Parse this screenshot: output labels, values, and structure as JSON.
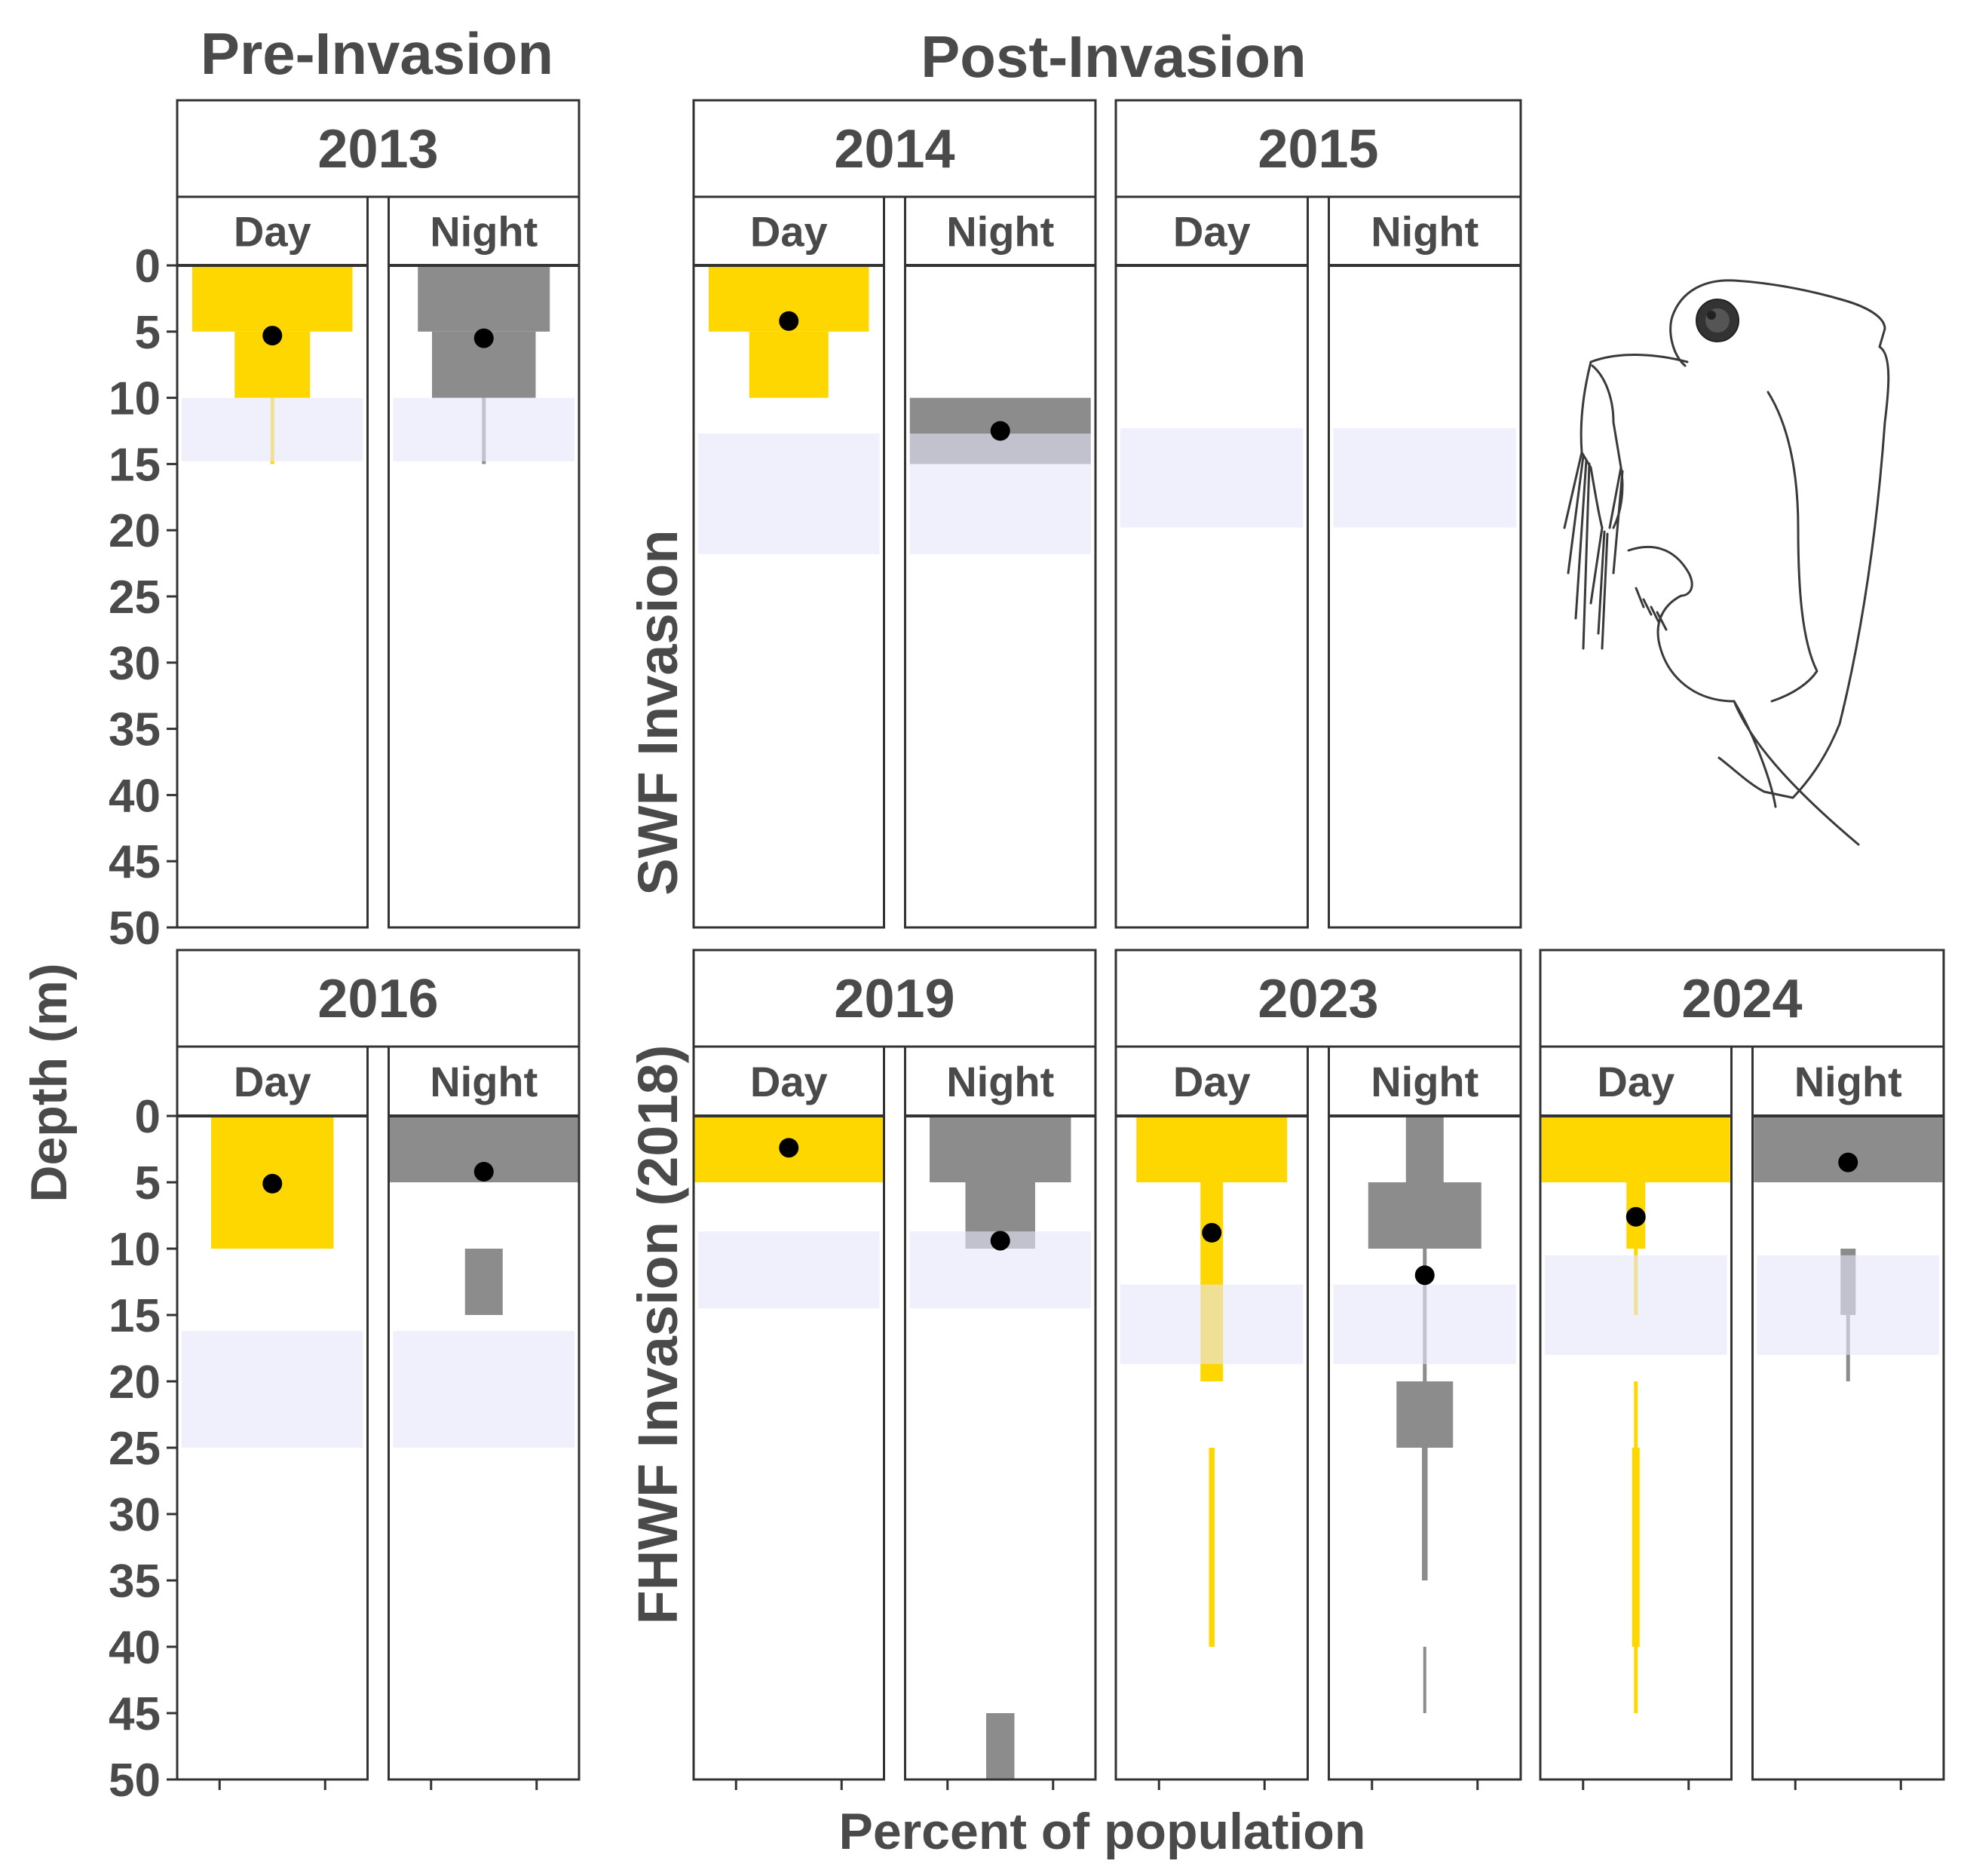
{
  "figure": {
    "pre_title": "Pre-Invasion",
    "post_title": "Post-Invasion",
    "row_label_top": "SWF Invasion",
    "row_label_bottom": "FHWF Invasion (2018)",
    "ylabel": "Depth (m)",
    "xlabel": "Percent of population",
    "illustration": "daphnia-drawing"
  },
  "colors": {
    "day": "#FFD700",
    "night": "#8C8C8C",
    "band": "#E6E6FA",
    "mean": "#000000",
    "frame": "#333333",
    "text": "#4a4a4a"
  },
  "chart_data": {
    "type": "bar",
    "orientation": "horizontal-kite",
    "ylabel": "Depth (m)",
    "xlabel": "Percent of population",
    "ylim": [
      0,
      50
    ],
    "yreversed": true,
    "yticks": [
      "0",
      "5",
      "10",
      "15",
      "20",
      "25",
      "30",
      "35",
      "40",
      "45",
      "50"
    ],
    "subpanels": [
      "Day",
      "Night"
    ],
    "panels": [
      {
        "year": "2013",
        "band": [
          10,
          14.8
        ],
        "day": {
          "layers": [
            {
              "top": 0,
              "bottom": 5,
              "pct": 85
            },
            {
              "top": 5,
              "bottom": 10,
              "pct": 40
            },
            {
              "top": 10,
              "bottom": 15,
              "pct": 2
            }
          ],
          "mean": 5.3
        },
        "night": {
          "layers": [
            {
              "top": 0,
              "bottom": 5,
              "pct": 70
            },
            {
              "top": 5,
              "bottom": 10,
              "pct": 55
            },
            {
              "top": 10,
              "bottom": 15,
              "pct": 2
            }
          ],
          "mean": 5.5
        }
      },
      {
        "year": "2014",
        "band": [
          12.7,
          21.8
        ],
        "day": {
          "layers": [
            {
              "top": 0,
              "bottom": 5,
              "pct": 85
            },
            {
              "top": 5,
              "bottom": 10,
              "pct": 42
            }
          ],
          "mean": 4.2
        },
        "night": {
          "layers": [
            {
              "top": 10,
              "bottom": 15,
              "pct": 96
            }
          ],
          "mean": 12.5
        }
      },
      {
        "year": "2015",
        "band": [
          12.3,
          19.8
        ],
        "day": {
          "layers": [],
          "mean": null
        },
        "night": {
          "layers": [],
          "mean": null
        }
      },
      {
        "year": "2016",
        "band": [
          16.2,
          25
        ],
        "day": {
          "layers": [
            {
              "top": 0,
              "bottom": 10,
              "pct": 65
            }
          ],
          "mean": 5.1
        },
        "night": {
          "layers": [
            {
              "top": 0,
              "bottom": 5,
              "pct": 100
            },
            {
              "top": 10,
              "bottom": 15,
              "pct": 20
            }
          ],
          "mean": 4.2
        }
      },
      {
        "year": "2019",
        "band": [
          8.7,
          14.5
        ],
        "day": {
          "layers": [
            {
              "top": 0,
              "bottom": 5,
              "pct": 100
            }
          ],
          "mean": 2.4
        },
        "night": {
          "layers": [
            {
              "top": 0,
              "bottom": 5,
              "pct": 75
            },
            {
              "top": 5,
              "bottom": 10,
              "pct": 37
            },
            {
              "top": 45,
              "bottom": 50,
              "pct": 15
            }
          ],
          "mean": 9.4
        }
      },
      {
        "year": "2023",
        "band": [
          12.7,
          18.7
        ],
        "day": {
          "layers": [
            {
              "top": 0,
              "bottom": 5,
              "pct": 80
            },
            {
              "top": 5,
              "bottom": 20,
              "pct": 12
            },
            {
              "top": 25,
              "bottom": 40,
              "pct": 3
            }
          ],
          "mean": 8.8
        },
        "night": {
          "layers": [
            {
              "top": 0,
              "bottom": 5,
              "pct": 20
            },
            {
              "top": 5,
              "bottom": 10,
              "pct": 60
            },
            {
              "top": 10,
              "bottom": 20,
              "pct": 2
            },
            {
              "top": 20,
              "bottom": 25,
              "pct": 30
            },
            {
              "top": 25,
              "bottom": 35,
              "pct": 3
            },
            {
              "top": 40,
              "bottom": 45,
              "pct": 1
            }
          ],
          "mean": 12
        }
      },
      {
        "year": "2024",
        "band": [
          10.5,
          18
        ],
        "day": {
          "layers": [
            {
              "top": 0,
              "bottom": 5,
              "pct": 100
            },
            {
              "top": 5,
              "bottom": 10,
              "pct": 10
            },
            {
              "top": 10,
              "bottom": 15,
              "pct": 2
            },
            {
              "top": 20,
              "bottom": 25,
              "pct": 2
            },
            {
              "top": 25,
              "bottom": 40,
              "pct": 4
            },
            {
              "top": 40,
              "bottom": 45,
              "pct": 2
            }
          ],
          "mean": 7.6
        },
        "night": {
          "layers": [
            {
              "top": 0,
              "bottom": 5,
              "pct": 100
            },
            {
              "top": 10,
              "bottom": 15,
              "pct": 8
            },
            {
              "top": 15,
              "bottom": 20,
              "pct": 2
            }
          ],
          "mean": 3.5
        }
      }
    ]
  }
}
